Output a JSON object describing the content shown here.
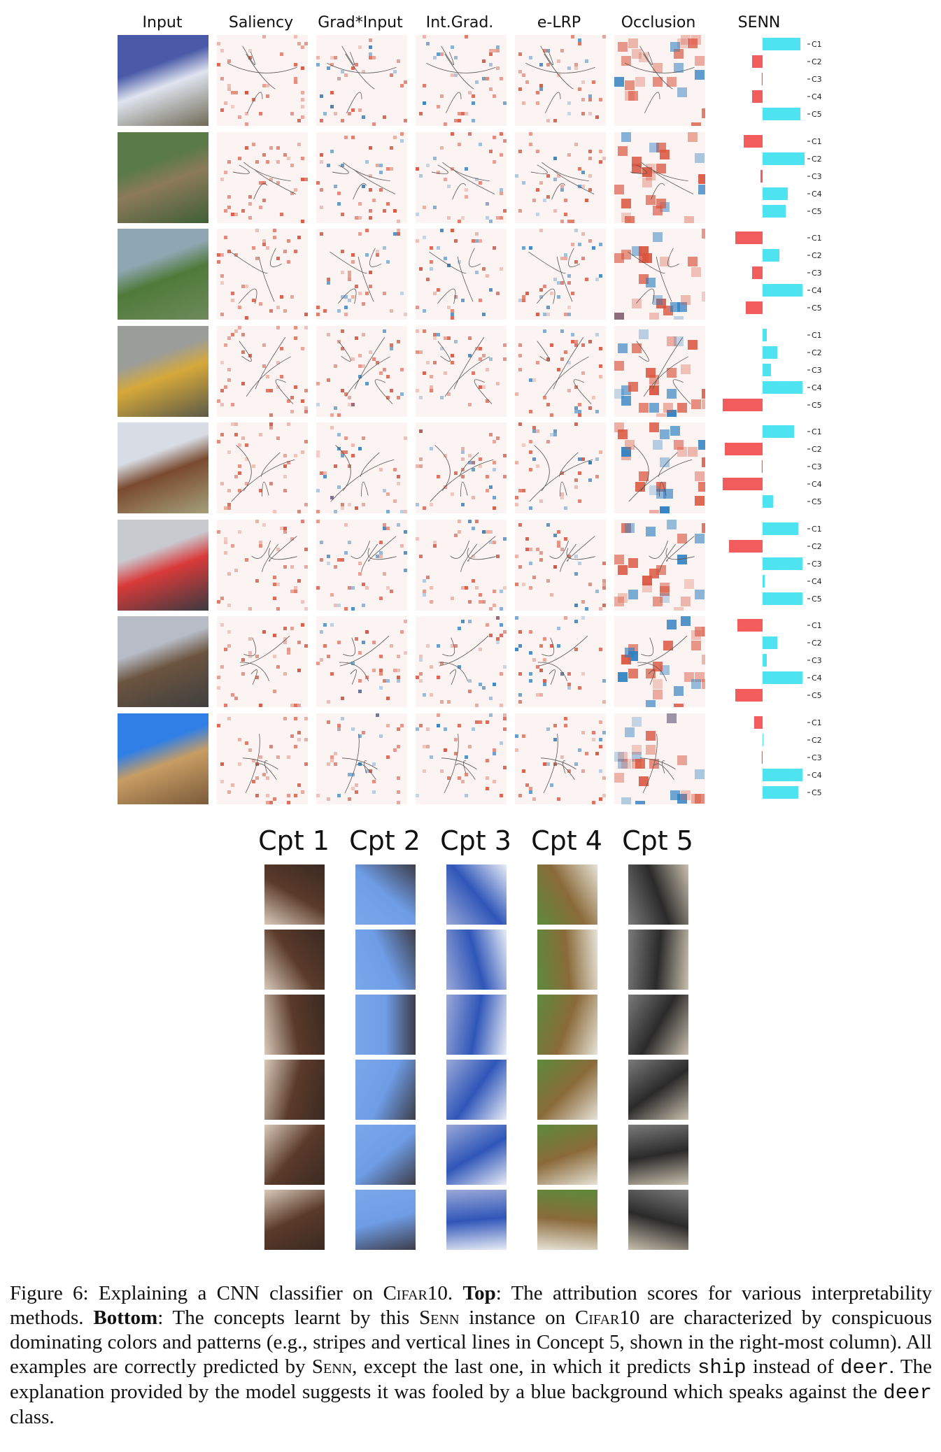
{
  "top_headers": [
    "Input",
    "Saliency",
    "Grad*Input",
    "Int.Grad.",
    "e-LRP",
    "Occlusion",
    "SENN"
  ],
  "senn_labels": [
    "C1",
    "C2",
    "C3",
    "C4",
    "C5"
  ],
  "senn_rows": [
    {
      "values": [
        0.9,
        -0.25,
        -0.02,
        -0.25,
        0.9
      ]
    },
    {
      "values": [
        -0.45,
        1.0,
        -0.05,
        0.6,
        0.55
      ]
    },
    {
      "values": [
        -0.65,
        0.4,
        -0.25,
        0.95,
        -0.4
      ]
    },
    {
      "values": [
        0.1,
        0.35,
        0.2,
        0.95,
        -0.95
      ]
    },
    {
      "values": [
        0.75,
        -0.9,
        -0.02,
        -0.95,
        0.25
      ]
    },
    {
      "values": [
        0.85,
        -0.8,
        0.95,
        0.05,
        0.95
      ]
    },
    {
      "values": [
        -0.6,
        0.35,
        0.1,
        0.95,
        -0.65
      ]
    },
    {
      "values": [
        -0.2,
        0.0,
        -0.02,
        0.95,
        0.85
      ]
    }
  ],
  "concept_headers": [
    "Cpt 1",
    "Cpt 2",
    "Cpt 3",
    "Cpt 4",
    "Cpt 5"
  ],
  "caption": {
    "fig_label": "Figure 6: Explaining a CNN classifier on ",
    "cifar1": "Cifar",
    "cifar1_num": "10. ",
    "top_bold": "Top",
    "t1": ": The attribution scores for various interpretability methods. ",
    "bottom_bold": "Bottom",
    "t2": ": The concepts learnt by this ",
    "senn1": "Senn",
    "t3": " instance on ",
    "cifar2": "Cifar",
    "cifar2_num": "10",
    "t4": " are characterized by conspicuous dominating colors and patterns (e.g., stripes and vertical lines in Concept 5, shown in the right-most column). All examples are correctly predicted by ",
    "senn2": "Senn",
    "t5": ", except the last one, in which it predicts ",
    "ship": "ship",
    "t6": " instead of ",
    "deer1": "deer",
    "t7": ". The explanation provided by the model suggests it was fooled by a blue background which speaks against the ",
    "deer2": "deer",
    "t8": " class."
  },
  "colors": {
    "pos": "#4de3f0",
    "neg": "#f25c5c",
    "heat_red": "#d9553f",
    "heat_blue": "#2f7fc1"
  }
}
